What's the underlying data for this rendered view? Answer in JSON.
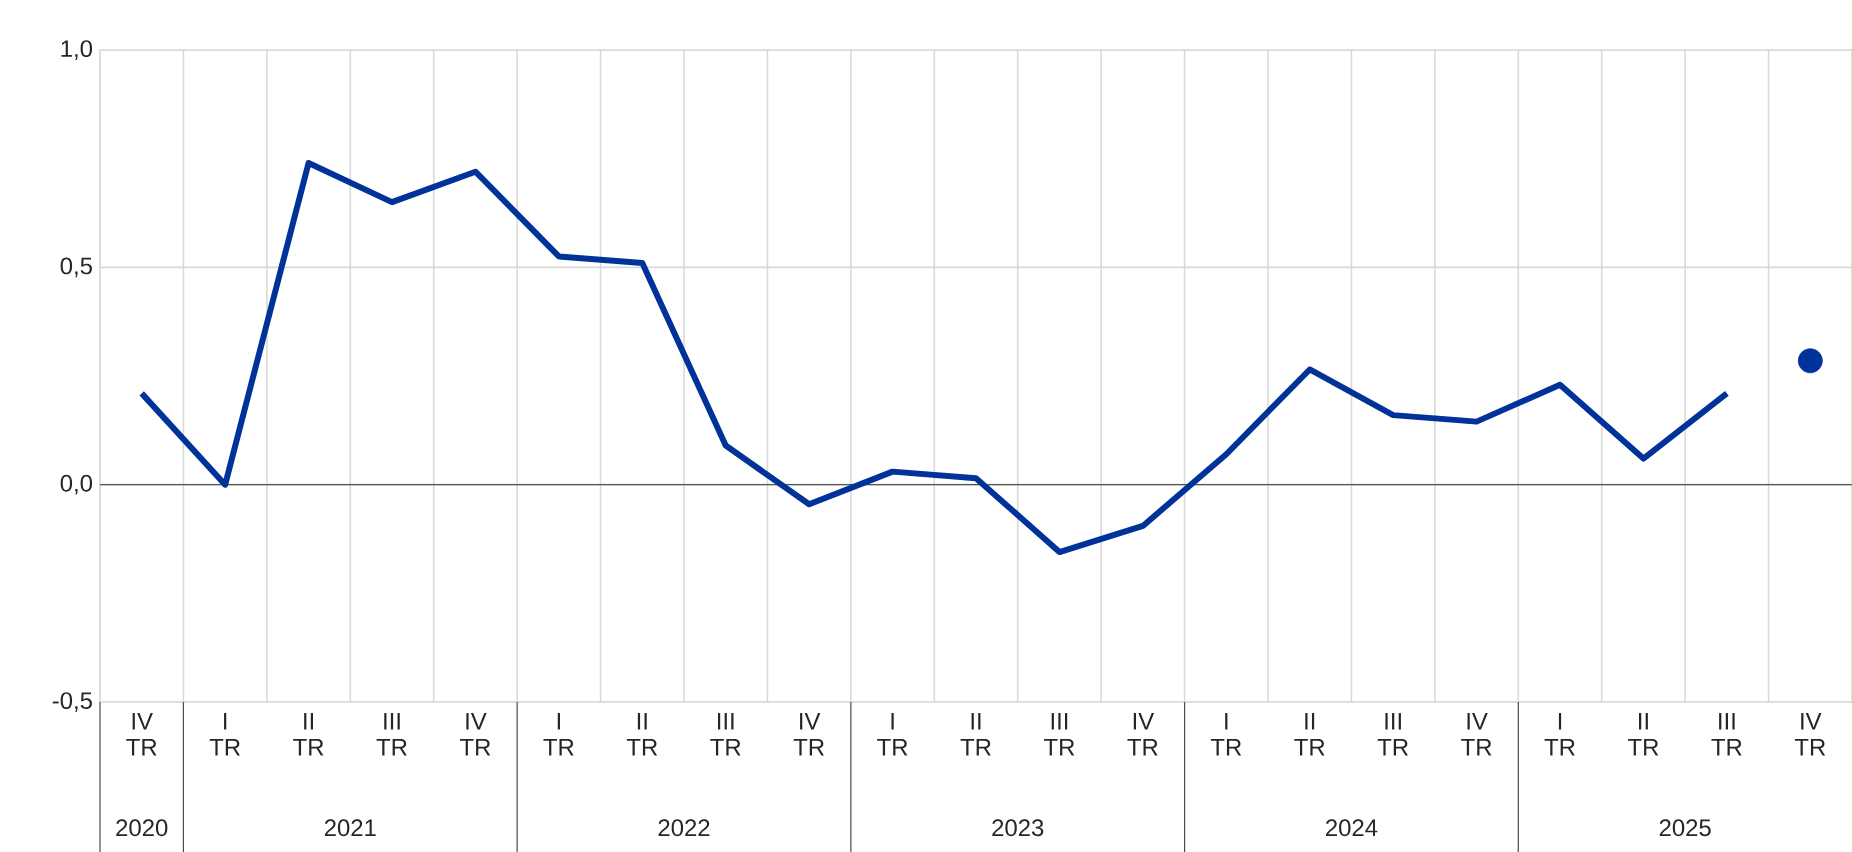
{
  "chart_data": {
    "type": "line",
    "categories": [
      "IV TR",
      "I TR",
      "II TR",
      "III TR",
      "IV TR",
      "I TR",
      "II TR",
      "III TR",
      "IV TR",
      "I TR",
      "II TR",
      "III TR",
      "IV TR",
      "I TR",
      "II TR",
      "III TR",
      "IV TR",
      "I TR",
      "II TR",
      "III TR",
      "IV TR"
    ],
    "annotations": [
      "2020",
      "2021",
      "2022",
      "2023",
      "2024",
      "2025"
    ],
    "series": [
      {
        "type": "line",
        "color": "#003299",
        "values": [
          0.21,
          0.0,
          0.74,
          0.65,
          0.72,
          0.525,
          0.51,
          0.09,
          -0.045,
          0.03,
          0.015,
          -0.155,
          -0.095,
          0.07,
          0.265,
          0.16,
          0.145,
          0.23,
          0.06,
          0.21,
          null
        ]
      },
      {
        "type": "scatter",
        "color": "#003299",
        "marker": "circle",
        "values": [
          null,
          null,
          null,
          null,
          null,
          null,
          null,
          null,
          null,
          null,
          null,
          null,
          null,
          null,
          null,
          null,
          null,
          null,
          null,
          null,
          0.285
        ]
      }
    ],
    "ylim": [
      -0.5,
      1.0
    ],
    "yticks": [
      {
        "value": -0.5,
        "label": "-0,5"
      },
      {
        "value": 0.0,
        "label": "0,0"
      },
      {
        "value": 0.5,
        "label": "0,5"
      },
      {
        "value": 1.0,
        "label": "1,0"
      }
    ],
    "ref_lines": [
      {
        "axis": "y",
        "value": 0.0,
        "color": "#555555"
      }
    ],
    "grid": true
  }
}
